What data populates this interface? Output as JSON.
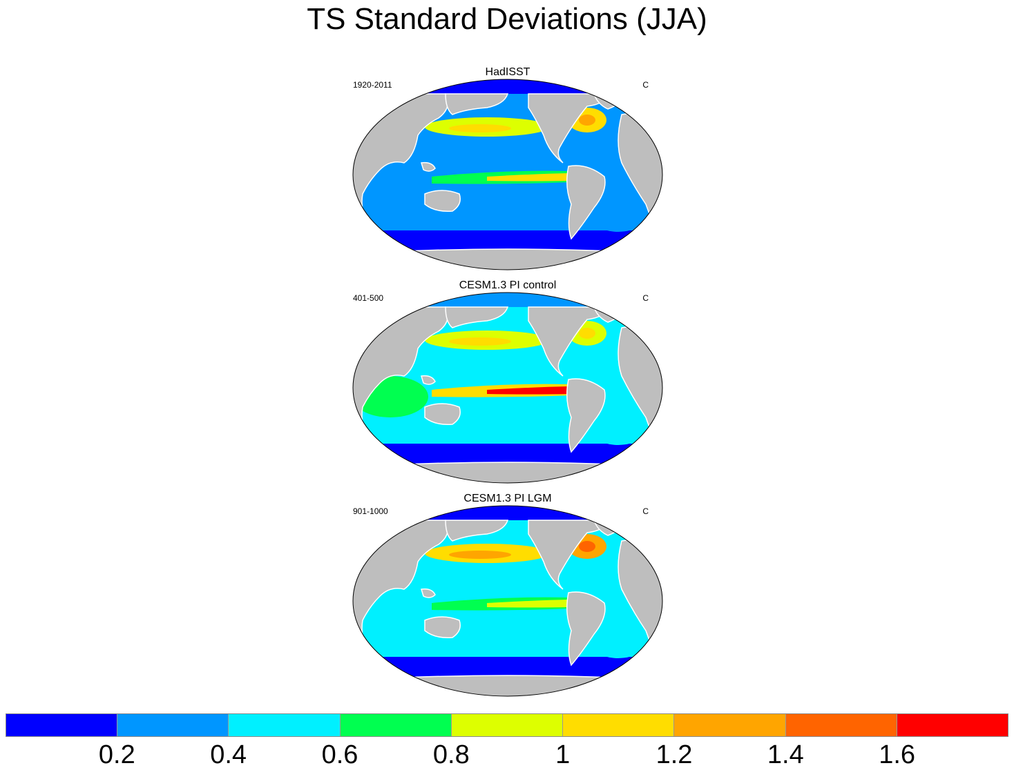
{
  "title": "TS Standard Deviations (JJA)",
  "panels": [
    {
      "title": "HadISST",
      "left": "1920-2011",
      "right": "C",
      "fields": {
        "arctic": 0.1,
        "north_pacific": 0.9,
        "north_atlantic": 1.1,
        "tropical_pacific": 1.1,
        "indian_ocean": 0.3,
        "southern_ocean": 0.15,
        "south_atlantic": 0.3,
        "mid_ocean": 0.3
      }
    },
    {
      "title": "CESM1.3 PI control",
      "left": "401-500",
      "right": "C",
      "fields": {
        "arctic": 0.3,
        "north_pacific": 0.9,
        "north_atlantic": 0.8,
        "tropical_pacific": 1.6,
        "indian_ocean": 0.7,
        "southern_ocean": 0.15,
        "south_atlantic": 0.5,
        "mid_ocean": 0.5
      }
    },
    {
      "title": "CESM1.3 PI LGM",
      "left": "901-1000",
      "right": "C",
      "fields": {
        "arctic": 0.1,
        "north_pacific": 1.1,
        "north_atlantic": 1.3,
        "tropical_pacific": 0.9,
        "indian_ocean": 0.5,
        "southern_ocean": 0.1,
        "south_atlantic": 0.5,
        "mid_ocean": 0.5
      }
    }
  ],
  "colorbar": {
    "colors": [
      "#0000ff",
      "#0096ff",
      "#00f0ff",
      "#00ff50",
      "#ddff00",
      "#ffdd00",
      "#ffa500",
      "#ff6400",
      "#ff0000"
    ],
    "labels": [
      "0.2",
      "0.4",
      "0.6",
      "0.8",
      "1",
      "1.2",
      "1.4",
      "1.6"
    ],
    "levels": [
      0.2,
      0.4,
      0.6,
      0.8,
      1.0,
      1.2,
      1.4,
      1.6
    ]
  },
  "land_color": "#bebebe"
}
